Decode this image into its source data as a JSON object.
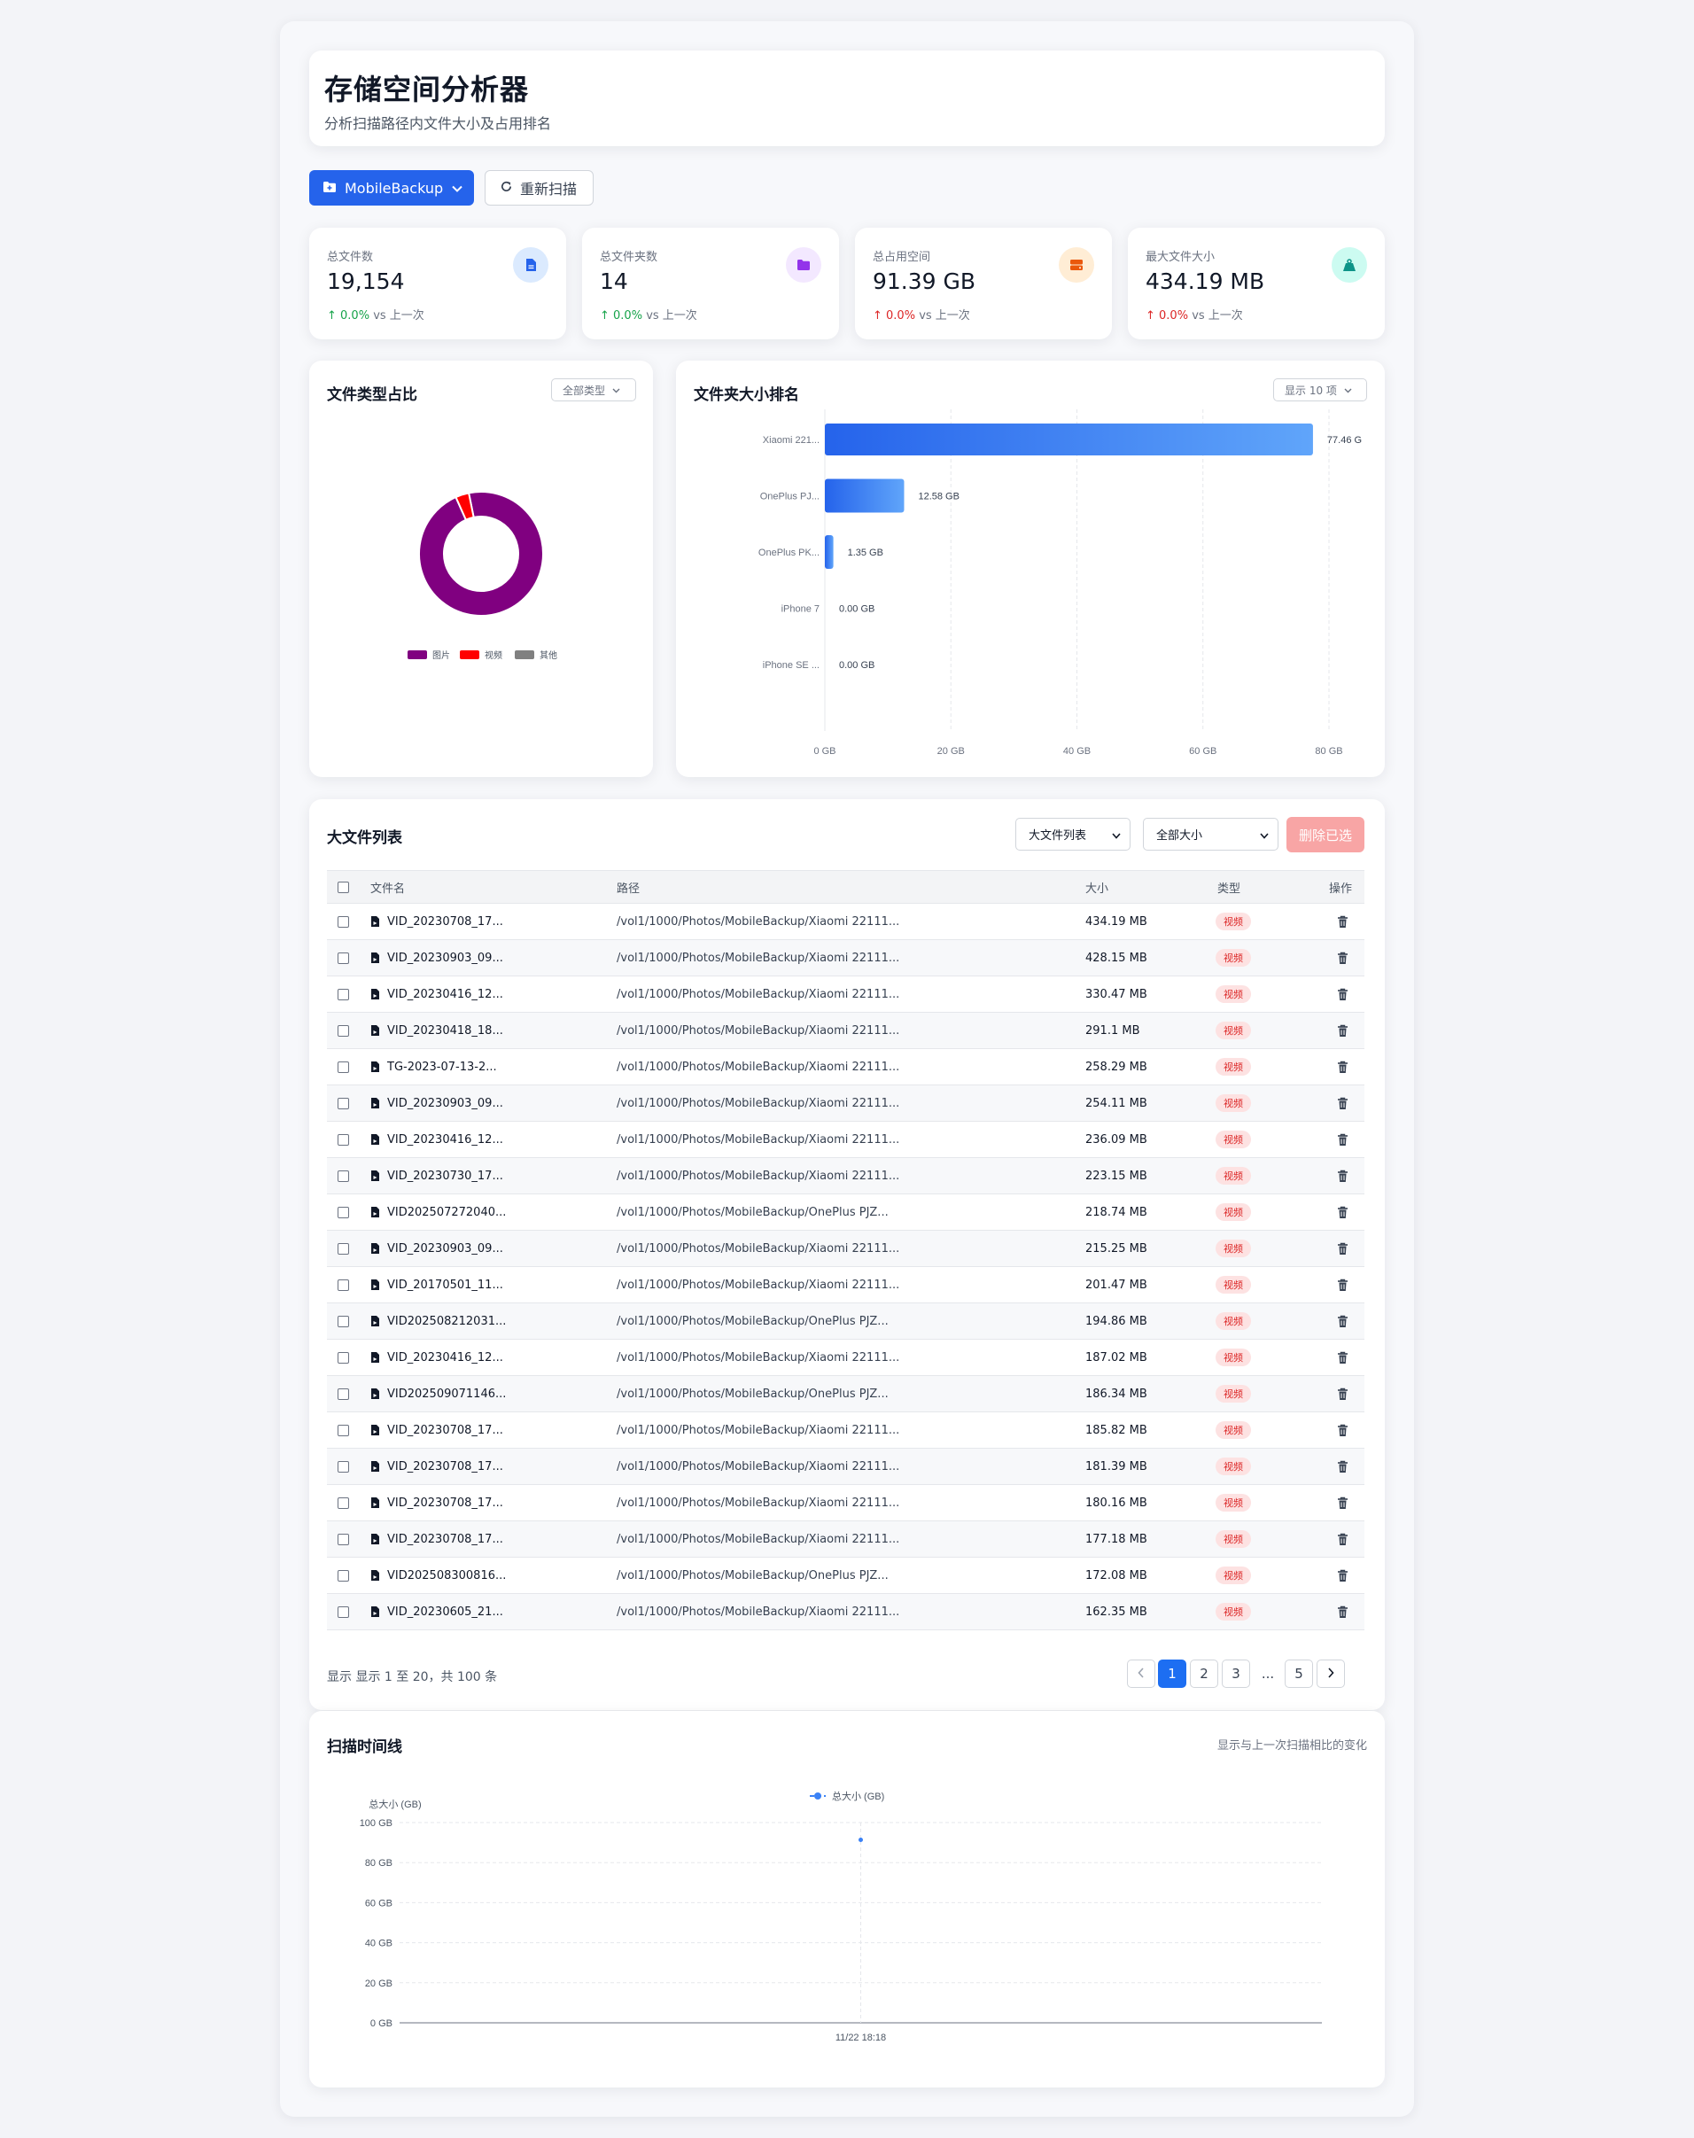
{
  "header": {
    "title": "存储空间分析器",
    "subtitle": "分析扫描路径内文件大小及占用排名"
  },
  "toolbar": {
    "folder_label": "MobileBackup",
    "rescan_label": "重新扫描"
  },
  "stats": [
    {
      "label": "总文件数",
      "value": "19,154",
      "change": "0.0%",
      "suffix": "vs 上一次",
      "trend": "up",
      "icon": "file-icon",
      "color": "#2563eb"
    },
    {
      "label": "总文件夹数",
      "value": "14",
      "change": "0.0%",
      "suffix": "vs 上一次",
      "trend": "up",
      "icon": "folder-icon",
      "color": "#9333ea"
    },
    {
      "label": "总占用空间",
      "value": "91.39 GB",
      "change": "0.0%",
      "suffix": "vs 上一次",
      "trend": "down",
      "icon": "hard-drive-icon",
      "color": "#ea580c"
    },
    {
      "label": "最大文件大小",
      "value": "434.19 MB",
      "change": "0.0%",
      "suffix": "vs 上一次",
      "trend": "down",
      "icon": "weight-icon",
      "color": "#0d9488"
    }
  ],
  "pie": {
    "title": "文件类型占比",
    "filter": "全部类型"
  },
  "bar": {
    "title": "文件夹大小排名",
    "filter": "显示 10 项"
  },
  "table": {
    "title": "大文件列表",
    "select_list": "大文件列表",
    "select_size": "全部大小",
    "delete_label": "删除已选",
    "headers": {
      "name": "文件名",
      "path": "路径",
      "size": "大小",
      "type": "类型",
      "action": "操作"
    },
    "rows": [
      {
        "name": "VID_20230708_17...",
        "path": "/vol1/1000/Photos/MobileBackup/Xiaomi 22111...",
        "size": "434.19 MB",
        "type": "视频"
      },
      {
        "name": "VID_20230903_09...",
        "path": "/vol1/1000/Photos/MobileBackup/Xiaomi 22111...",
        "size": "428.15 MB",
        "type": "视频"
      },
      {
        "name": "VID_20230416_12...",
        "path": "/vol1/1000/Photos/MobileBackup/Xiaomi 22111...",
        "size": "330.47 MB",
        "type": "视频"
      },
      {
        "name": "VID_20230418_18...",
        "path": "/vol1/1000/Photos/MobileBackup/Xiaomi 22111...",
        "size": "291.1 MB",
        "type": "视频"
      },
      {
        "name": "TG-2023-07-13-2...",
        "path": "/vol1/1000/Photos/MobileBackup/Xiaomi 22111...",
        "size": "258.29 MB",
        "type": "视频"
      },
      {
        "name": "VID_20230903_09...",
        "path": "/vol1/1000/Photos/MobileBackup/Xiaomi 22111...",
        "size": "254.11 MB",
        "type": "视频"
      },
      {
        "name": "VID_20230416_12...",
        "path": "/vol1/1000/Photos/MobileBackup/Xiaomi 22111...",
        "size": "236.09 MB",
        "type": "视频"
      },
      {
        "name": "VID_20230730_17...",
        "path": "/vol1/1000/Photos/MobileBackup/Xiaomi 22111...",
        "size": "223.15 MB",
        "type": "视频"
      },
      {
        "name": "VID202507272040...",
        "path": "/vol1/1000/Photos/MobileBackup/OnePlus PJZ...",
        "size": "218.74 MB",
        "type": "视频"
      },
      {
        "name": "VID_20230903_09...",
        "path": "/vol1/1000/Photos/MobileBackup/Xiaomi 22111...",
        "size": "215.25 MB",
        "type": "视频"
      },
      {
        "name": "VID_20170501_11...",
        "path": "/vol1/1000/Photos/MobileBackup/Xiaomi 22111...",
        "size": "201.47 MB",
        "type": "视频"
      },
      {
        "name": "VID202508212031...",
        "path": "/vol1/1000/Photos/MobileBackup/OnePlus PJZ...",
        "size": "194.86 MB",
        "type": "视频"
      },
      {
        "name": "VID_20230416_12...",
        "path": "/vol1/1000/Photos/MobileBackup/Xiaomi 22111...",
        "size": "187.02 MB",
        "type": "视频"
      },
      {
        "name": "VID202509071146...",
        "path": "/vol1/1000/Photos/MobileBackup/OnePlus PJZ...",
        "size": "186.34 MB",
        "type": "视频"
      },
      {
        "name": "VID_20230708_17...",
        "path": "/vol1/1000/Photos/MobileBackup/Xiaomi 22111...",
        "size": "185.82 MB",
        "type": "视频"
      },
      {
        "name": "VID_20230708_17...",
        "path": "/vol1/1000/Photos/MobileBackup/Xiaomi 22111...",
        "size": "181.39 MB",
        "type": "视频"
      },
      {
        "name": "VID_20230708_17...",
        "path": "/vol1/1000/Photos/MobileBackup/Xiaomi 22111...",
        "size": "180.16 MB",
        "type": "视频"
      },
      {
        "name": "VID_20230708_17...",
        "path": "/vol1/1000/Photos/MobileBackup/Xiaomi 22111...",
        "size": "177.18 MB",
        "type": "视频"
      },
      {
        "name": "VID202508300816...",
        "path": "/vol1/1000/Photos/MobileBackup/OnePlus PJZ...",
        "size": "172.08 MB",
        "type": "视频"
      },
      {
        "name": "VID_20230605_21...",
        "path": "/vol1/1000/Photos/MobileBackup/Xiaomi 22111...",
        "size": "162.35 MB",
        "type": "视频"
      }
    ],
    "footer": "显示 显示 1 至 20，共 100 条",
    "pages": [
      "1",
      "2",
      "3",
      "...",
      "5"
    ],
    "current_page": "1"
  },
  "timeline": {
    "title": "扫描时间线",
    "note": "显示与上一次扫描相比的变化"
  },
  "chart_data": [
    {
      "type": "pie",
      "title": "",
      "labels": [
        "图片",
        "视频",
        "其他"
      ],
      "values": [
        96.5,
        3.5,
        0.0
      ],
      "colors": [
        "#800080",
        "#ff0000",
        "#808080"
      ],
      "legend": "bottom"
    },
    {
      "type": "bar",
      "orientation": "horizontal",
      "categories": [
        "Xiaomi 221...",
        "OnePlus PJ...",
        "OnePlus PK...",
        "iPhone 7",
        "iPhone SE ..."
      ],
      "values": [
        77.46,
        12.58,
        1.35,
        0.0,
        0.0
      ],
      "value_labels": [
        "77.46 G",
        "12.58 GB",
        "1.35 GB",
        "0.00 GB",
        "0.00 GB"
      ],
      "xlim": [
        0,
        80
      ],
      "xticks": [
        "0 GB",
        "20 GB",
        "40 GB",
        "60 GB",
        "80 GB"
      ],
      "grid": true
    },
    {
      "type": "line",
      "series": [
        {
          "name": "总大小 (GB)",
          "x": [
            "11/22 18:18"
          ],
          "values": [
            91.39
          ]
        }
      ],
      "ylabel": "总大小 (GB)",
      "ylim": [
        0,
        100
      ],
      "yticks": [
        "0 GB",
        "20 GB",
        "40 GB",
        "60 GB",
        "80 GB",
        "100 GB"
      ],
      "xticks": [
        "11/22 18:18"
      ],
      "legend": "top",
      "grid": true
    }
  ]
}
